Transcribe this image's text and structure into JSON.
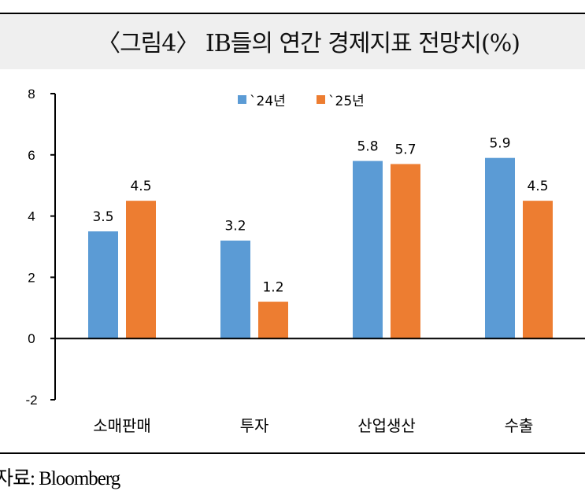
{
  "chart_data": {
    "type": "bar",
    "title": "〈그림4〉 IB들의 연간 경제지표 전망치(%)",
    "categories": [
      "소매판매",
      "투자",
      "산업생산",
      "수출"
    ],
    "series": [
      {
        "name": "`24년",
        "color": "#5b9bd5",
        "values": [
          3.5,
          3.2,
          5.8,
          5.9
        ]
      },
      {
        "name": "`25년",
        "color": "#ed7d31",
        "values": [
          4.5,
          1.2,
          5.7,
          4.5
        ]
      }
    ],
    "ylim": [
      -2,
      8
    ],
    "yticks": [
      "8",
      "6",
      "4",
      "2",
      "0",
      "-2"
    ],
    "xlabel": "",
    "ylabel": "",
    "legend": "top-center",
    "grid": false,
    "data_labels": true
  },
  "source": "자료: Bloomberg"
}
